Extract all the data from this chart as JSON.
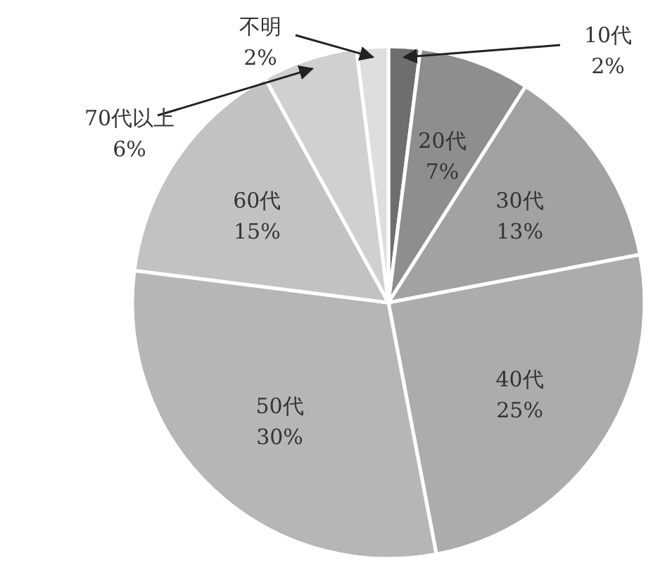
{
  "chart_data": {
    "type": "pie",
    "categories": [
      "10代",
      "20代",
      "30代",
      "40代",
      "50代",
      "60代",
      "70代以上",
      "不明"
    ],
    "values": [
      2,
      7,
      13,
      25,
      30,
      15,
      6,
      2
    ],
    "value_labels": [
      "2%",
      "7%",
      "13%",
      "25%",
      "30%",
      "15%",
      "6%",
      "2%"
    ],
    "colors": [
      "#6e6e6e",
      "#8e8e8e",
      "#a2a2a2",
      "#acacac",
      "#b6b6b6",
      "#c2c2c2",
      "#d0d0d0",
      "#dedede"
    ]
  }
}
